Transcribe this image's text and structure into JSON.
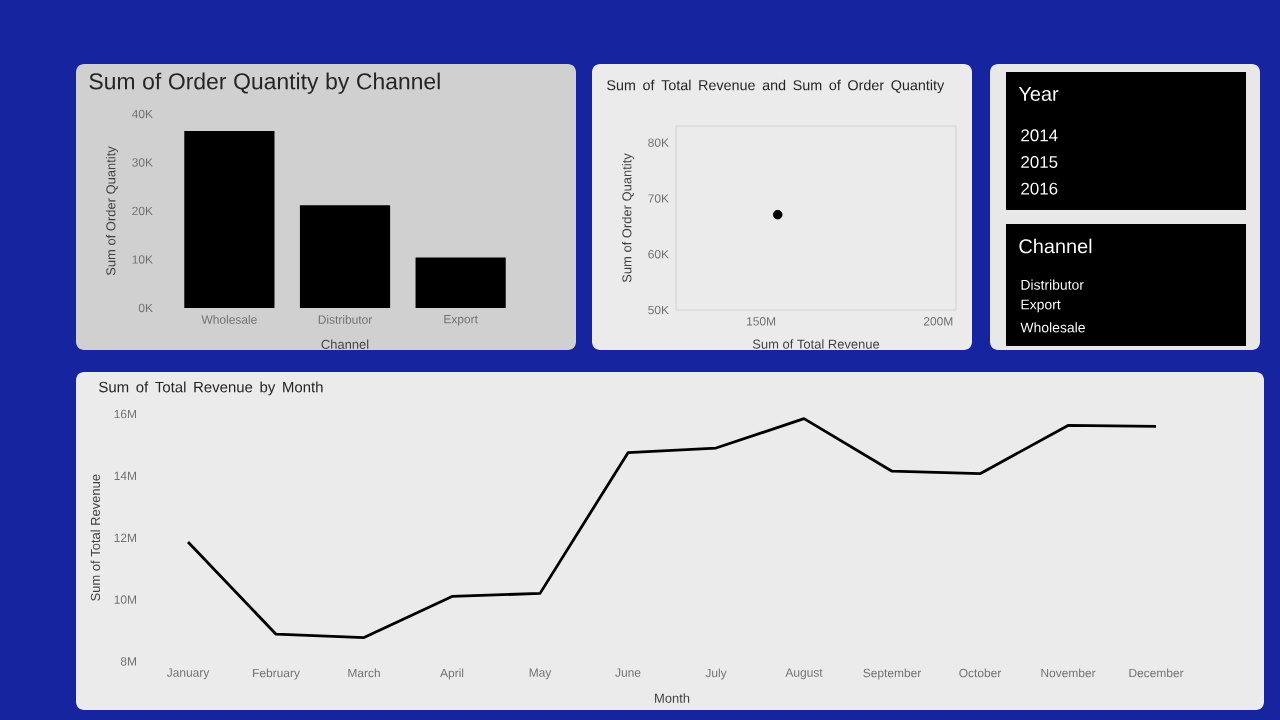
{
  "chart_data": [
    {
      "type": "bar",
      "title": "Sum of Order Quantity by Channel",
      "xlabel": "Channel",
      "ylabel": "Sum of Order Quantity",
      "categories": [
        "Wholesale",
        "Distributor",
        "Export"
      ],
      "values": [
        36.5,
        21.2,
        10.4
      ],
      "color": "#000000",
      "ylim": [
        0,
        40
      ],
      "yticks": [
        {
          "value": 0,
          "label": "0K"
        },
        {
          "value": 10,
          "label": "10K"
        },
        {
          "value": 20,
          "label": "20K"
        },
        {
          "value": 30,
          "label": "30K"
        },
        {
          "value": 40,
          "label": "40K"
        }
      ]
    },
    {
      "type": "scatter",
      "title": "Sum of Total Revenue and Sum of Order Quantity",
      "xlabel": "Sum of Total Revenue",
      "ylabel": "Sum of Order Quantity",
      "x": [
        154.7
      ],
      "values": [
        67.1
      ],
      "color": "#000000",
      "ylim": [
        50,
        83
      ],
      "xlim": [
        126,
        205
      ],
      "xticks": [
        {
          "value": 150,
          "label": "150M"
        },
        {
          "value": 200,
          "label": "200M"
        }
      ],
      "yticks": [
        {
          "value": 50,
          "label": "50K"
        },
        {
          "value": 60,
          "label": "60K"
        },
        {
          "value": 70,
          "label": "70K"
        },
        {
          "value": 80,
          "label": "80K"
        }
      ]
    },
    {
      "type": "other",
      "title": "Year",
      "categories": [
        "2014",
        "2015",
        "2016"
      ]
    },
    {
      "type": "other",
      "title": "Channel",
      "categories": [
        "Distributor",
        "Export",
        "Wholesale"
      ]
    },
    {
      "type": "line",
      "title": "Sum of Total Revenue by Month",
      "xlabel": "Month",
      "ylabel": "Sum of Total Revenue",
      "categories": [
        "January",
        "February",
        "March",
        "April",
        "May",
        "June",
        "July",
        "August",
        "September",
        "October",
        "November",
        "December"
      ],
      "values": [
        11.86,
        8.88,
        8.77,
        10.1,
        10.2,
        14.75,
        14.9,
        15.85,
        14.15,
        14.07,
        15.63,
        15.6
      ],
      "color": "#000000",
      "ylim": [
        8,
        16
      ],
      "yticks": [
        {
          "value": 8,
          "label": "8M"
        },
        {
          "value": 10,
          "label": "10M"
        },
        {
          "value": 12,
          "label": "12M"
        },
        {
          "value": 14,
          "label": "14M"
        },
        {
          "value": 16,
          "label": "16M"
        }
      ]
    }
  ]
}
